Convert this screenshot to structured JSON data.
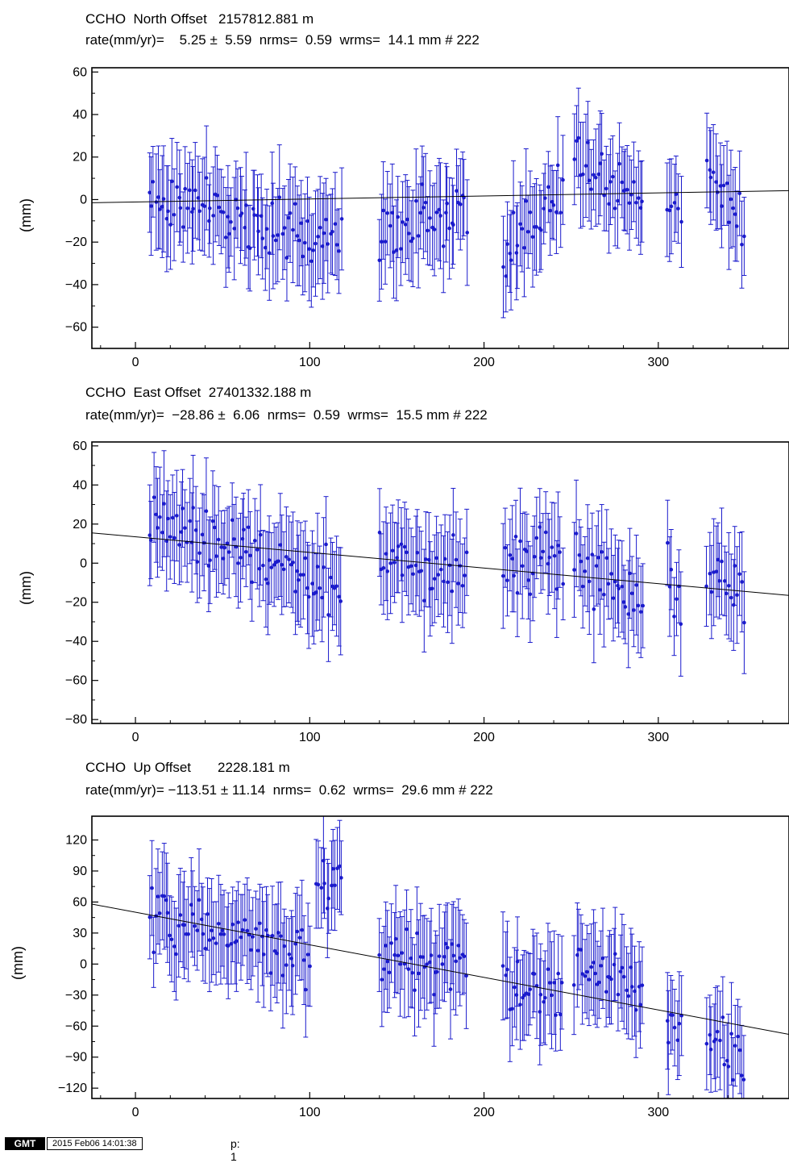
{
  "chart_data": [
    {
      "type": "scatter",
      "station": "CCHO",
      "component": "North",
      "title": "CCHO  North Offset   2157812.881 m",
      "subtitle": "rate(mm/yr)=    5.25 ±  5.59  nrms=  0.59  wrms=  14.1 mm # 222",
      "ylabel": "(mm)",
      "xlim": [
        -25,
        375
      ],
      "ylim": [
        -70,
        62
      ],
      "xticks": [
        0,
        100,
        200,
        300
      ],
      "yticks": [
        -60,
        -40,
        -20,
        0,
        20,
        40,
        60
      ],
      "trend": {
        "x": [
          -25,
          375
        ],
        "y": [
          -1.5,
          4.2
        ]
      },
      "nominal_error_mm": 20,
      "segments": [
        {
          "x": [
            8,
            118
          ],
          "y_start": 2,
          "y_end": -20
        },
        {
          "x": [
            140,
            190
          ],
          "y_start": -18,
          "y_end": -2
        },
        {
          "x": [
            211,
            245
          ],
          "y_start": -25,
          "y_end": 5
        },
        {
          "x": [
            252,
            291
          ],
          "y_start": 22,
          "y_end": 0
        },
        {
          "x": [
            305,
            313
          ],
          "y_start": 2,
          "y_end": -3
        },
        {
          "x": [
            328,
            349
          ],
          "y_start": 12,
          "y_end": -4
        }
      ],
      "scatter_amplitude_mm": 14,
      "n_points": 222
    },
    {
      "type": "scatter",
      "station": "CCHO",
      "component": "East",
      "title": "CCHO  East Offset  27401332.188 m",
      "subtitle": "rate(mm/yr)=  −28.86 ±  6.06  nrms=  0.59  wrms=  15.5 mm # 222",
      "ylabel": "(mm)",
      "xlim": [
        -25,
        375
      ],
      "ylim": [
        -82,
        62
      ],
      "xticks": [
        0,
        100,
        200,
        300
      ],
      "yticks": [
        -80,
        -60,
        -40,
        -20,
        0,
        20,
        40,
        60
      ],
      "trend": {
        "x": [
          -25,
          375
        ],
        "y": [
          15.5,
          -16.5
        ]
      },
      "nominal_error_mm": 22,
      "segments": [
        {
          "x": [
            8,
            118
          ],
          "y_start": 20,
          "y_end": -12
        },
        {
          "x": [
            140,
            190
          ],
          "y_start": 2,
          "y_end": -5
        },
        {
          "x": [
            211,
            245
          ],
          "y_start": 0,
          "y_end": 2
        },
        {
          "x": [
            252,
            291
          ],
          "y_start": 5,
          "y_end": -25
        },
        {
          "x": [
            305,
            313
          ],
          "y_start": -8,
          "y_end": -12
        },
        {
          "x": [
            328,
            349
          ],
          "y_start": -5,
          "y_end": -18
        }
      ],
      "scatter_amplitude_mm": 15,
      "n_points": 222
    },
    {
      "type": "scatter",
      "station": "CCHO",
      "component": "Up",
      "title": "CCHO  Up Offset       2228.181 m",
      "subtitle": "rate(mm/yr)= −113.51 ± 11.14  nrms=  0.62  wrms=  29.6 mm # 222",
      "ylabel": "(mm)",
      "xlim": [
        -25,
        375
      ],
      "ylim": [
        -130,
        143
      ],
      "xticks": [
        0,
        100,
        200,
        300
      ],
      "yticks": [
        -120,
        -90,
        -60,
        -30,
        0,
        30,
        60,
        90,
        120
      ],
      "trend": {
        "x": [
          -25,
          375
        ],
        "y": [
          58,
          -68
        ]
      },
      "nominal_error_mm": 42,
      "segments": [
        {
          "x": [
            8,
            100
          ],
          "y_start": 45,
          "y_end": 10
        },
        {
          "x": [
            104,
            118
          ],
          "y_start": 70,
          "y_end": 95
        },
        {
          "x": [
            140,
            190
          ],
          "y_start": 10,
          "y_end": -5
        },
        {
          "x": [
            211,
            245
          ],
          "y_start": -15,
          "y_end": -35
        },
        {
          "x": [
            252,
            291
          ],
          "y_start": 5,
          "y_end": -30
        },
        {
          "x": [
            305,
            313
          ],
          "y_start": -55,
          "y_end": -70
        },
        {
          "x": [
            328,
            349
          ],
          "y_start": -70,
          "y_end": -90
        }
      ],
      "scatter_amplitude_mm": 28,
      "n_points": 222
    }
  ],
  "colors": {
    "points": "#1a1acc",
    "trend": "#000000",
    "axis": "#000000"
  },
  "footer": {
    "logo": "GMT",
    "timestamp": "2015 Feb06 14:01:38",
    "page": "p: 1"
  }
}
